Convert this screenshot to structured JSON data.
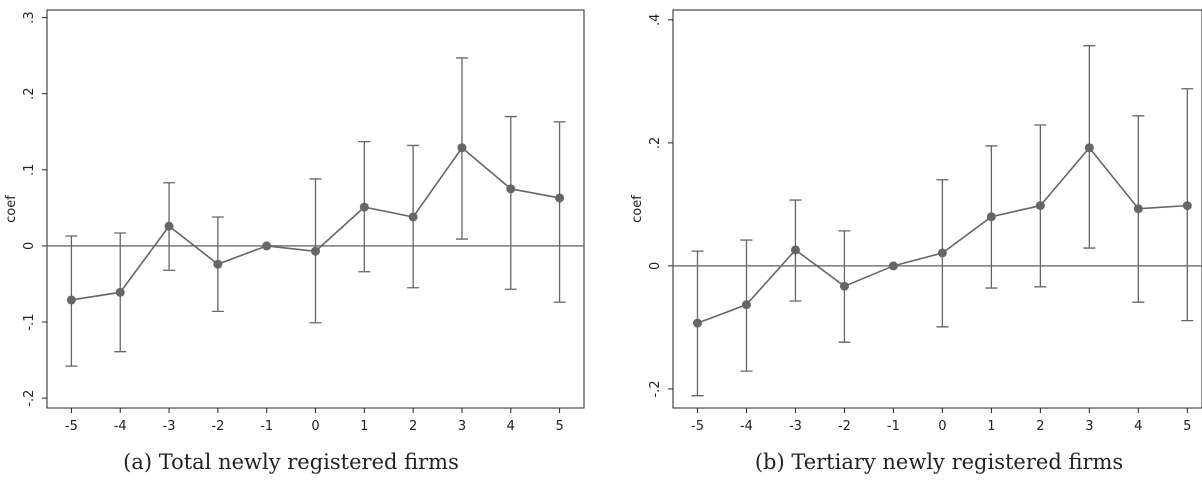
{
  "chart_data": [
    {
      "type": "errorbar-line",
      "caption": "(a) Total newly registered firms",
      "ylabel": "coef",
      "x": [
        -5,
        -4,
        -3,
        -2,
        -1,
        0,
        1,
        2,
        3,
        4,
        5
      ],
      "xlim": [
        -5.5,
        5.5
      ],
      "xticks": [
        -5,
        -4,
        -3,
        -2,
        -1,
        0,
        1,
        2,
        3,
        4,
        5
      ],
      "ylim": [
        -0.213,
        0.31
      ],
      "yticks": [
        {
          "value": -0.2,
          "label": "-.2"
        },
        {
          "value": -0.1,
          "label": "-.1"
        },
        0,
        {
          "value": 0.1,
          "label": ".1"
        },
        {
          "value": 0.2,
          "label": ".2"
        },
        {
          "value": 0.3,
          "label": ".3"
        }
      ],
      "hline": 0,
      "color": "#666666",
      "values": [
        -0.071,
        -0.061,
        0.026,
        -0.024,
        0,
        -0.007,
        0.051,
        0.038,
        0.129,
        0.075,
        0.063
      ],
      "lower": [
        -0.158,
        -0.139,
        -0.032,
        -0.086,
        null,
        -0.101,
        -0.034,
        -0.055,
        0.009,
        -0.057,
        -0.074
      ],
      "upper": [
        0.013,
        0.017,
        0.083,
        0.038,
        null,
        0.088,
        0.137,
        0.132,
        0.247,
        0.17,
        0.163
      ]
    },
    {
      "type": "errorbar-line",
      "caption": "(b) Tertiary newly registered firms",
      "ylabel": "coef",
      "x": [
        -5,
        -4,
        -3,
        -2,
        -1,
        0,
        1,
        2,
        3,
        4,
        5
      ],
      "xlim": [
        -5.5,
        5.3
      ],
      "xticks": [
        -5,
        -4,
        -3,
        -2,
        -1,
        0,
        1,
        2,
        3,
        4,
        5
      ],
      "ylim": [
        -0.231,
        0.416
      ],
      "yticks": [
        {
          "value": -0.2,
          "label": "-.2"
        },
        0,
        {
          "value": 0.2,
          "label": ".2"
        },
        {
          "value": 0.4,
          "label": ".4"
        }
      ],
      "hline": 0,
      "color": "#666666",
      "values": [
        -0.093,
        -0.063,
        0.026,
        -0.033,
        0,
        0.021,
        0.08,
        0.098,
        0.192,
        0.093,
        0.098
      ],
      "lower": [
        -0.211,
        -0.171,
        -0.057,
        -0.124,
        null,
        -0.099,
        -0.036,
        -0.034,
        0.029,
        -0.059,
        -0.089
      ],
      "upper": [
        0.024,
        0.042,
        0.107,
        0.057,
        null,
        0.14,
        0.195,
        0.229,
        0.358,
        0.244,
        0.288
      ]
    }
  ]
}
